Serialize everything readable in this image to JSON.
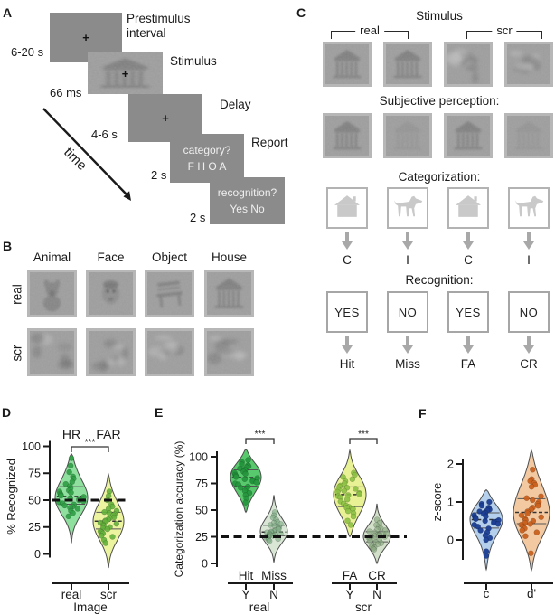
{
  "a": {
    "label": "A",
    "caption1a": "Prestimulus",
    "caption1b": "interval",
    "caption2": "Stimulus",
    "caption3": "Delay",
    "caption4": "Report",
    "dur1": "6-20 s",
    "dur2": "66 ms",
    "dur3": "4-6 s",
    "dur4": "2 s",
    "dur5": "2 s",
    "fixation": "+",
    "q1line1": "category?",
    "q1line2": "F H O A",
    "q2line1": "recognition?",
    "q2line2": "Yes No",
    "time": "time"
  },
  "b": {
    "label": "B",
    "cols": [
      "Animal",
      "Face",
      "Object",
      "House"
    ],
    "rows": [
      "real",
      "scr"
    ]
  },
  "c": {
    "label": "C",
    "stimulus_title": "Stimulus",
    "real": "real",
    "scr": "scr",
    "subjective_title": "Subjective perception:",
    "categorization_title": "Categorization:",
    "cat_results": [
      "C",
      "I",
      "C",
      "I"
    ],
    "recognition_title": "Recognition:",
    "rec_options": [
      "YES",
      "NO",
      "YES",
      "NO"
    ],
    "rec_results": [
      "Hit",
      "Miss",
      "FA",
      "CR"
    ]
  },
  "panel_labels": {
    "d": "D",
    "e": "E",
    "f": "F"
  },
  "chart_data": [
    {
      "id": "D",
      "type": "violin",
      "ylabel": "% Recognized",
      "yticks": [
        0,
        25,
        50,
        75,
        100
      ],
      "ylim": [
        0,
        100
      ],
      "dashed_line_y": 50,
      "xlabel": "Image",
      "violins": [
        {
          "x_label": "real",
          "top_label": "HR",
          "fill": "#8fdf9f",
          "dot_color": "#2f9e45",
          "dot_opacity": 0.9,
          "range": [
            10,
            93
          ],
          "points": [
            89,
            82,
            76,
            72,
            70,
            67,
            65,
            63,
            61,
            59,
            58,
            57,
            56,
            55,
            54,
            53,
            52,
            51,
            50,
            49,
            48,
            47,
            46,
            45,
            44,
            43,
            42,
            40,
            38,
            35
          ]
        },
        {
          "x_label": "scr",
          "top_label": "FAR",
          "fill": "#edf4a0",
          "dot_color": "#64b13c",
          "dot_opacity": 0.9,
          "range": [
            -13,
            74
          ],
          "points": [
            58,
            54,
            50,
            46,
            44,
            42,
            40,
            39,
            38,
            37,
            36,
            34,
            33,
            32,
            31,
            30,
            29,
            28,
            27,
            26,
            25,
            24,
            23,
            21,
            20,
            19,
            17,
            16,
            13,
            10
          ]
        }
      ],
      "significance": [
        {
          "a": 0,
          "b": 1,
          "label": "***"
        }
      ]
    },
    {
      "id": "E",
      "type": "violin",
      "ylabel": "Categorization accuracy (%)",
      "yticks": [
        0,
        25,
        50,
        75,
        100
      ],
      "ylim": [
        0,
        100
      ],
      "dashed_line_y": 25,
      "group_names": [
        "real",
        "scr"
      ],
      "violins": [
        {
          "top_label": "Hit",
          "x_label": "Y",
          "group": 0,
          "fill": "#58c96c",
          "dot_color": "#23933c",
          "dot_opacity": 0.9,
          "range": [
            48,
            107
          ],
          "points": [
            97,
            95,
            93,
            92,
            91,
            90,
            89,
            88,
            87,
            86,
            85,
            84,
            83,
            82,
            81,
            80,
            79,
            78,
            77,
            76,
            75,
            74,
            72,
            71,
            70,
            68,
            66,
            64,
            61,
            57
          ]
        },
        {
          "top_label": "Miss",
          "x_label": "N",
          "group": 0,
          "fill": "#d9e6d6",
          "dot_color": "#7fae86",
          "dot_opacity": 0.65,
          "range": [
            1,
            64
          ],
          "points": [
            48,
            45,
            43,
            41,
            39,
            38,
            37,
            36,
            35,
            34,
            33,
            32,
            31,
            30,
            30,
            29,
            29,
            28,
            28,
            27,
            27,
            26,
            26,
            25,
            25,
            25,
            24,
            23,
            22,
            21
          ]
        },
        {
          "top_label": "FA",
          "x_label": "Y",
          "group": 1,
          "fill": "#e9f195",
          "dot_color": "#8cc043",
          "dot_opacity": 0.9,
          "range": [
            25,
            106
          ],
          "points": [
            85,
            83,
            81,
            79,
            77,
            75,
            73,
            72,
            71,
            70,
            69,
            68,
            67,
            66,
            65,
            64,
            63,
            62,
            60,
            58,
            56,
            54,
            53,
            52,
            51,
            49,
            47,
            44,
            40,
            36
          ]
        },
        {
          "top_label": "CR",
          "x_label": "N",
          "group": 1,
          "fill": "#d2dfc9",
          "dot_color": "#8aa981",
          "dot_opacity": 0.65,
          "range": [
            0,
            56
          ],
          "points": [
            41,
            38,
            36,
            34,
            33,
            32,
            31,
            30,
            29,
            28,
            28,
            27,
            27,
            26,
            26,
            25,
            25,
            24,
            24,
            23,
            22,
            21,
            20,
            19,
            18,
            17,
            16,
            15,
            14,
            13
          ]
        }
      ],
      "significance": [
        {
          "a": 0,
          "b": 1,
          "label": "***"
        },
        {
          "a": 2,
          "b": 3,
          "label": "***"
        }
      ]
    },
    {
      "id": "F",
      "type": "violin",
      "ylabel": "z-score",
      "yticks": [
        0,
        1,
        2
      ],
      "ylim": [
        -0.8,
        2.4
      ],
      "violins": [
        {
          "x_label": "c",
          "fill": "#b5d0ec",
          "dot_color": "#1c3e94",
          "dot_opacity": 0.95,
          "range": [
            -0.78,
            1.32
          ],
          "points": [
            1.0,
            0.95,
            0.9,
            0.85,
            0.8,
            0.78,
            0.75,
            0.72,
            0.7,
            0.68,
            0.65,
            0.62,
            0.6,
            0.58,
            0.55,
            0.52,
            0.5,
            0.48,
            0.45,
            0.42,
            0.4,
            0.35,
            0.3,
            0.25,
            0.2,
            0.12,
            0.05,
            0.0,
            -0.3,
            -0.42
          ]
        },
        {
          "x_label": "d'",
          "fill": "#f3c9a2",
          "dot_color": "#c9611f",
          "dot_opacity": 0.95,
          "range": [
            -0.8,
            2.35
          ],
          "points": [
            1.85,
            1.6,
            1.55,
            1.5,
            1.45,
            1.4,
            1.15,
            1.1,
            1.05,
            1.0,
            0.95,
            0.9,
            0.85,
            0.8,
            0.75,
            0.7,
            0.65,
            0.6,
            0.55,
            0.52,
            0.5,
            0.45,
            0.42,
            0.4,
            0.35,
            0.3,
            0.25,
            0.2,
            0.1,
            -0.35
          ]
        }
      ]
    }
  ]
}
